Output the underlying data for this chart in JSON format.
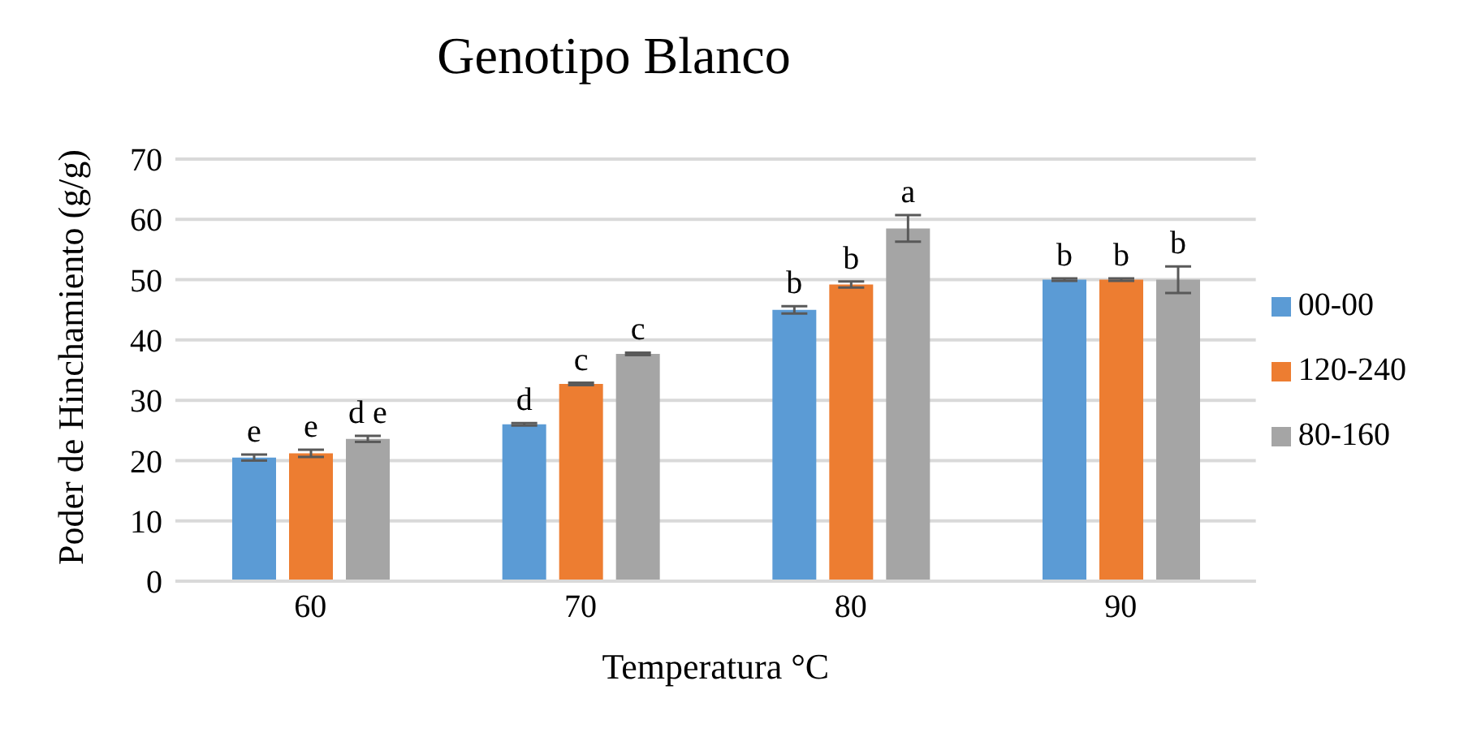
{
  "chart_data": {
    "type": "bar",
    "title": "Genotipo Blanco",
    "xlabel": "Temperatura °C",
    "ylabel": "Poder de Hinchamiento (g/g)",
    "categories": [
      "60",
      "70",
      "80",
      "90"
    ],
    "series": [
      {
        "name": "00-00",
        "color": "#5b9bd5",
        "values": [
          20.5,
          26,
          45,
          50
        ],
        "errors": [
          0.5,
          0.2,
          0.6,
          0.2
        ],
        "value_labels": [
          "e",
          "d",
          "b",
          "b"
        ]
      },
      {
        "name": "120-240",
        "color": "#ed7d31",
        "values": [
          21.2,
          32.7,
          49.2,
          50
        ],
        "errors": [
          0.6,
          0.2,
          0.5,
          0.2
        ],
        "value_labels": [
          "e",
          "c",
          "b",
          "b"
        ]
      },
      {
        "name": "80-160",
        "color": "#a5a5a5",
        "values": [
          23.6,
          37.7,
          58.5,
          50
        ],
        "errors": [
          0.5,
          0.2,
          2.2,
          2.2
        ],
        "value_labels": [
          "d e",
          "c",
          "a",
          "b"
        ]
      }
    ],
    "ylim": [
      0,
      70
    ],
    "yticks": [
      0,
      10,
      20,
      30,
      40,
      50,
      60,
      70
    ],
    "grid": "y",
    "legend": "right"
  }
}
